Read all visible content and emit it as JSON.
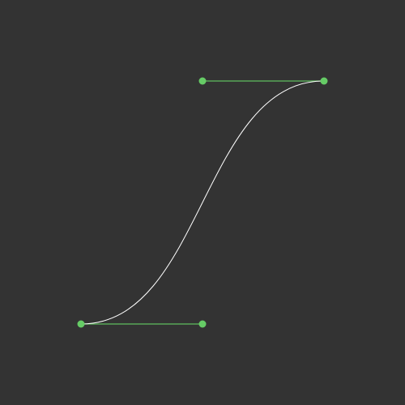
{
  "editor": {
    "curve_type": "cubic-bezier",
    "easing": [
      0.5,
      0,
      0.5,
      1
    ],
    "colors": {
      "background": "#333333",
      "curve": "#ffffff",
      "handle_line": "#5fbf5f",
      "handle_point": "#66cc66"
    }
  }
}
